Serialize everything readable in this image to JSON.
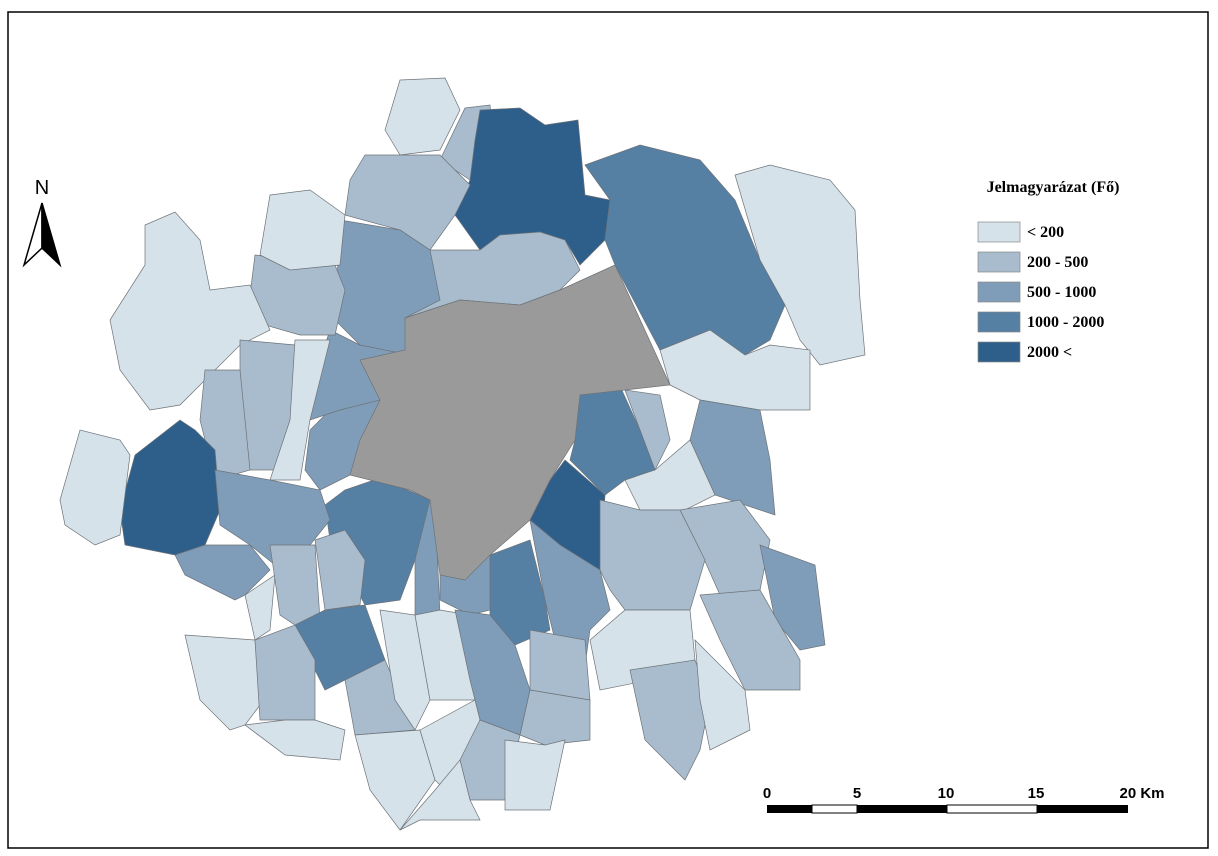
{
  "north_arrow": {
    "label": "N"
  },
  "legend": {
    "title": "Jelmagyarázat (Fő)",
    "items": [
      {
        "label": "< 200",
        "color": "#d5e2e9"
      },
      {
        "label": "200 - 500",
        "color": "#a8bccd"
      },
      {
        "label": "500 - 1000",
        "color": "#7f9db8"
      },
      {
        "label": "1000 - 2000",
        "color": "#557fa3"
      },
      {
        "label": "2000 <",
        "color": "#2e5f8a"
      }
    ]
  },
  "scale_bar": {
    "labels": [
      "0",
      "5",
      "10",
      "15",
      "20 Km"
    ]
  }
}
